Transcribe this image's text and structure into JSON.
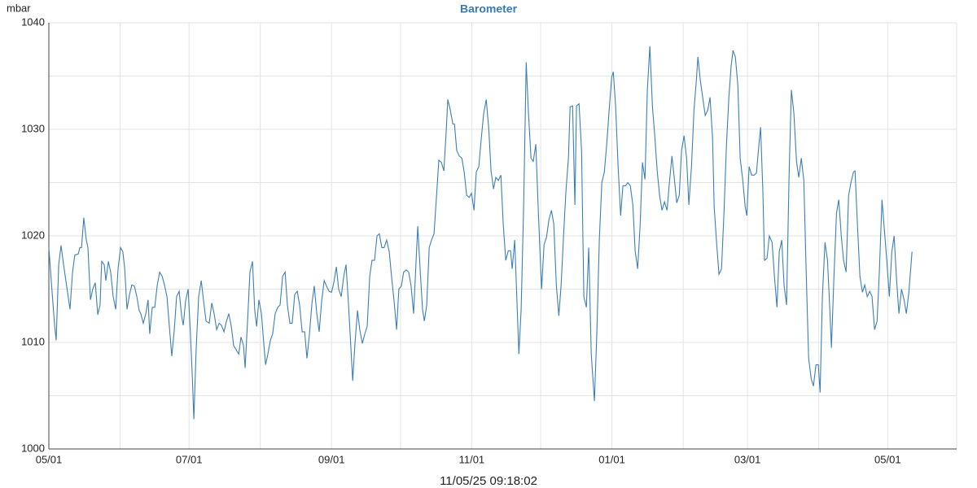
{
  "chart_data": {
    "type": "line",
    "title": "Barometer",
    "ylabel": "mbar",
    "footer": "11/05/25 09:18:02",
    "color": "#3d7fb5",
    "grid": true,
    "xlim": [
      0,
      395
    ],
    "ylim": [
      1000,
      1040
    ],
    "xticks": [
      {
        "value": 0,
        "label": "05/01"
      },
      {
        "value": 61,
        "label": "07/01"
      },
      {
        "value": 123,
        "label": "09/01"
      },
      {
        "value": 184,
        "label": "11/01"
      },
      {
        "value": 245,
        "label": "01/01"
      },
      {
        "value": 304,
        "label": "03/01"
      },
      {
        "value": 365,
        "label": "05/01"
      }
    ],
    "xminor": [
      31,
      92,
      153,
      214,
      276,
      335
    ],
    "yticks": [
      1000,
      1010,
      1020,
      1030,
      1040
    ],
    "yminor": [
      1005,
      1015,
      1025,
      1035
    ],
    "x": [
      0,
      1.4,
      2.5,
      3.2,
      4.3,
      5.3,
      6.4,
      7.4,
      9.2,
      10.3,
      11.3,
      12.8,
      13.5,
      14.2,
      15.2,
      16.3,
      17,
      18.1,
      19.1,
      20.2,
      21.3,
      22.3,
      23,
      24.1,
      24.8,
      25.9,
      26.9,
      28,
      29.1,
      30.1,
      31.2,
      32.2,
      33,
      34,
      35.1,
      36.1,
      37.2,
      38.3,
      39.3,
      40,
      41.1,
      42.2,
      43.2,
      43.9,
      45,
      46.1,
      47.1,
      48.2,
      49.3,
      50.3,
      51.4,
      52.4,
      53.5,
      54.6,
      55.6,
      56.7,
      57.8,
      58.5,
      59.5,
      60.6,
      61.6,
      62.4,
      63.1,
      64.1,
      65.2,
      66.3,
      67.3,
      68.4,
      69.8,
      70.9,
      71.9,
      73,
      74.1,
      75.1,
      76.2,
      77.3,
      78.3,
      79.4,
      80.4,
      81.5,
      82.6,
      83.6,
      84.7,
      85.4,
      86.5,
      87.5,
      88.6,
      89.6,
      90.4,
      91.4,
      92.5,
      93.6,
      94.3,
      95.3,
      96.4,
      97.4,
      98.5,
      99.6,
      100.6,
      101.7,
      102.8,
      103.8,
      104.9,
      105.9,
      107,
      108.1,
      109.1,
      110.2,
      111.3,
      112.3,
      113.4,
      114.5,
      115.5,
      116.6,
      117.6,
      118.7,
      119.8,
      120.8,
      121.9,
      123,
      124,
      125.1,
      126.1,
      127.2,
      128.3,
      129.3,
      130.4,
      132.2,
      133.2,
      134.3,
      135.3,
      136.4,
      137.5,
      138.5,
      139.6,
      140.6,
      141.7,
      142.8,
      143.8,
      144.9,
      145.9,
      147,
      148.1,
      149.1,
      150.2,
      151.3,
      152.3,
      153.4,
      154.4,
      155.5,
      156.6,
      157.6,
      158.7,
      159.8,
      160.5,
      161.6,
      162.6,
      163.4,
      164.4,
      165.5,
      166.5,
      167.6,
      168.7,
      169.7,
      170.8,
      171.9,
      172.9,
      173.6,
      174.7,
      175.8,
      176.5,
      177.5,
      178.6,
      179.7,
      180.7,
      181.8,
      182.9,
      183.9,
      185,
      186,
      187.1,
      188.2,
      189.2,
      190.3,
      191.4,
      192.4,
      193.5,
      194.5,
      195.6,
      196.7,
      197.7,
      198.8,
      199.9,
      200.9,
      201.6,
      202.7,
      204.5,
      205.5,
      206.6,
      207.7,
      208.7,
      209.8,
      210.8,
      211.9,
      213,
      214.4,
      215.5,
      216.5,
      217.6,
      218.7,
      219.7,
      220.8,
      221.9,
      222.9,
      224,
      225,
      226.1,
      226.8,
      227.9,
      228.9,
      229.6,
      230.7,
      231.8,
      232.8,
      233.9,
      234.9,
      236,
      237.4,
      238.5,
      239.5,
      240.6,
      241.7,
      242.7,
      243.8,
      244.9,
      245.6,
      246.6,
      247.7,
      248.8,
      249.8,
      250.9,
      251.9,
      253,
      254.1,
      255.1,
      256.2,
      257.3,
      258.3,
      259.4,
      260.4,
      261.5,
      262.6,
      263.6,
      264.7,
      265.8,
      266.8,
      267.9,
      269,
      270,
      271.1,
      272.1,
      273.2,
      274.3,
      275.3,
      276.4,
      277.5,
      278.5,
      279.6,
      280.7,
      281.7,
      282.4,
      283.5,
      284.5,
      285.6,
      286.7,
      287.7,
      288.8,
      289.5,
      290.6,
      291.6,
      292.7,
      293.8,
      294.8,
      295.9,
      296.9,
      297.7,
      298.7,
      299.8,
      300.8,
      301.9,
      303,
      303.7,
      304.7,
      305.8,
      306.9,
      307.9,
      309,
      309.7,
      310.7,
      311.4,
      312.5,
      313.5,
      314.7,
      315.7,
      316.8,
      317.8,
      318.9,
      319.9,
      321,
      322.1,
      323.1,
      324.2,
      325.3,
      326.3,
      327.4,
      328.5,
      329.5,
      330.6,
      331.7,
      332.7,
      333.8,
      334.8,
      335.6,
      336.6,
      337.7,
      338.8,
      339.8,
      340.5,
      341.6,
      342.7,
      343.7,
      344.8,
      345.8,
      346.9,
      348,
      349,
      350.1,
      350.8,
      351.9,
      352.9,
      354,
      355,
      356.1,
      357.2,
      358.2,
      359.3,
      360.4,
      361.4,
      362.5,
      363.6,
      364.6,
      365.7,
      366.8,
      367.8,
      368.9,
      369.9,
      371,
      372.1,
      373.1,
      374.2,
      375.6
    ],
    "values": [
      1018.9,
      1014.7,
      1011.6,
      1010.2,
      1017.3,
      1019.1,
      1017.3,
      1015.8,
      1013.1,
      1016.6,
      1018.2,
      1018.3,
      1018.9,
      1018.9,
      1021.7,
      1019.6,
      1018.9,
      1014,
      1015,
      1015.6,
      1012.6,
      1013.5,
      1017.6,
      1017.3,
      1015.8,
      1017.6,
      1016.6,
      1014.3,
      1013.1,
      1016.9,
      1018.9,
      1018.5,
      1016.9,
      1013.1,
      1014.5,
      1015.4,
      1015.3,
      1014.3,
      1013,
      1012.7,
      1011.8,
      1012.7,
      1014,
      1010.8,
      1013.3,
      1013.3,
      1015.3,
      1016.6,
      1016.2,
      1015.4,
      1014.3,
      1011.6,
      1008.7,
      1011.2,
      1014.3,
      1014.8,
      1012.4,
      1011.6,
      1013.9,
      1015,
      1010.8,
      1007,
      1002.8,
      1009.3,
      1014.3,
      1015.8,
      1013.9,
      1012,
      1011.8,
      1013.7,
      1012.7,
      1011.2,
      1011.8,
      1011.6,
      1011,
      1012,
      1012.7,
      1011.5,
      1009.7,
      1009.3,
      1008.9,
      1010.5,
      1009.7,
      1007.6,
      1012.2,
      1016.6,
      1017.6,
      1013,
      1011.5,
      1014,
      1012.7,
      1009.7,
      1007.9,
      1008.9,
      1010.2,
      1010.8,
      1012.7,
      1013.3,
      1013.5,
      1016.2,
      1016.6,
      1013.5,
      1011.8,
      1011.8,
      1014.5,
      1014.8,
      1013.5,
      1011,
      1011,
      1008.5,
      1010.8,
      1013.7,
      1015.3,
      1012.7,
      1011,
      1013.9,
      1015.8,
      1015.3,
      1014.8,
      1014.7,
      1015.6,
      1017.1,
      1015,
      1014.3,
      1016.2,
      1017.3,
      1013.5,
      1006.4,
      1009.9,
      1013,
      1011.2,
      1009.9,
      1010.8,
      1011.5,
      1016.2,
      1017.7,
      1017.7,
      1020,
      1020.2,
      1018.9,
      1018.9,
      1019.6,
      1018.5,
      1016.2,
      1013.9,
      1011.2,
      1015,
      1015.3,
      1016.6,
      1016.8,
      1016.6,
      1015.3,
      1012.7,
      1017.7,
      1020.9,
      1016.6,
      1013.1,
      1012,
      1013.5,
      1018.9,
      1019.6,
      1020.2,
      1023.8,
      1027.1,
      1026.9,
      1026.1,
      1029.9,
      1032.8,
      1031.8,
      1030.5,
      1030.5,
      1028,
      1027.5,
      1027.3,
      1026,
      1023.8,
      1023.6,
      1024,
      1022.4,
      1026,
      1026.5,
      1029.2,
      1031.5,
      1032.8,
      1030.1,
      1026.1,
      1024.4,
      1025.5,
      1025.2,
      1025.7,
      1021.1,
      1017.7,
      1018.6,
      1018.6,
      1016.9,
      1019.6,
      1008.9,
      1013.1,
      1022.9,
      1036.3,
      1031.5,
      1027.3,
      1027,
      1028.6,
      1022.1,
      1015,
      1019.2,
      1019.8,
      1021.5,
      1022.4,
      1021.1,
      1015.4,
      1012.5,
      1015.4,
      1020.2,
      1024.2,
      1027.3,
      1032.1,
      1032.2,
      1022.9,
      1032.2,
      1032.4,
      1028,
      1014.3,
      1013.3,
      1018.9,
      1008.9,
      1004.5,
      1011.2,
      1019.6,
      1025,
      1026,
      1028.5,
      1031.8,
      1034.9,
      1035.4,
      1032.2,
      1026.5,
      1021.9,
      1024.7,
      1024.7,
      1025,
      1024.7,
      1022.9,
      1018.6,
      1016.9,
      1021.1,
      1026.9,
      1025.3,
      1033.7,
      1037.8,
      1032.2,
      1029.5,
      1026.1,
      1023.7,
      1022.4,
      1023.2,
      1022.4,
      1025,
      1027.5,
      1025.5,
      1023.1,
      1023.8,
      1028,
      1029.4,
      1027.3,
      1022.9,
      1026.5,
      1031.8,
      1034.5,
      1036.8,
      1034.5,
      1033,
      1031.3,
      1031.8,
      1033,
      1029.2,
      1022.7,
      1019.2,
      1016.4,
      1016.9,
      1022.3,
      1028.4,
      1033.1,
      1036,
      1037.4,
      1036.8,
      1034.1,
      1027.3,
      1025.3,
      1022.7,
      1021.9,
      1026.5,
      1025.7,
      1025.7,
      1025.9,
      1028.6,
      1030.2,
      1024.2,
      1017.7,
      1017.9,
      1020,
      1019.4,
      1016.2,
      1013.3,
      1018.5,
      1019.6,
      1015.4,
      1013.5,
      1025.7,
      1033.7,
      1031.5,
      1027,
      1025.5,
      1027.3,
      1025.2,
      1016.9,
      1008.5,
      1006.6,
      1005.9,
      1007.9,
      1007.9,
      1005.3,
      1014.3,
      1019.4,
      1017.7,
      1013.1,
      1009.5,
      1016.2,
      1022.1,
      1023.4,
      1020,
      1017.7,
      1016.6,
      1023.8,
      1025,
      1026,
      1026.1,
      1020.8,
      1016.2,
      1014.7,
      1015.4,
      1014.3,
      1014.8,
      1014.3,
      1011.2,
      1012,
      1016.9,
      1023.4,
      1020.4,
      1017.7,
      1014.3,
      1018.5,
      1020,
      1015.8,
      1012.7,
      1015,
      1014,
      1012.7,
      1014.7,
      1018.5
    ]
  }
}
